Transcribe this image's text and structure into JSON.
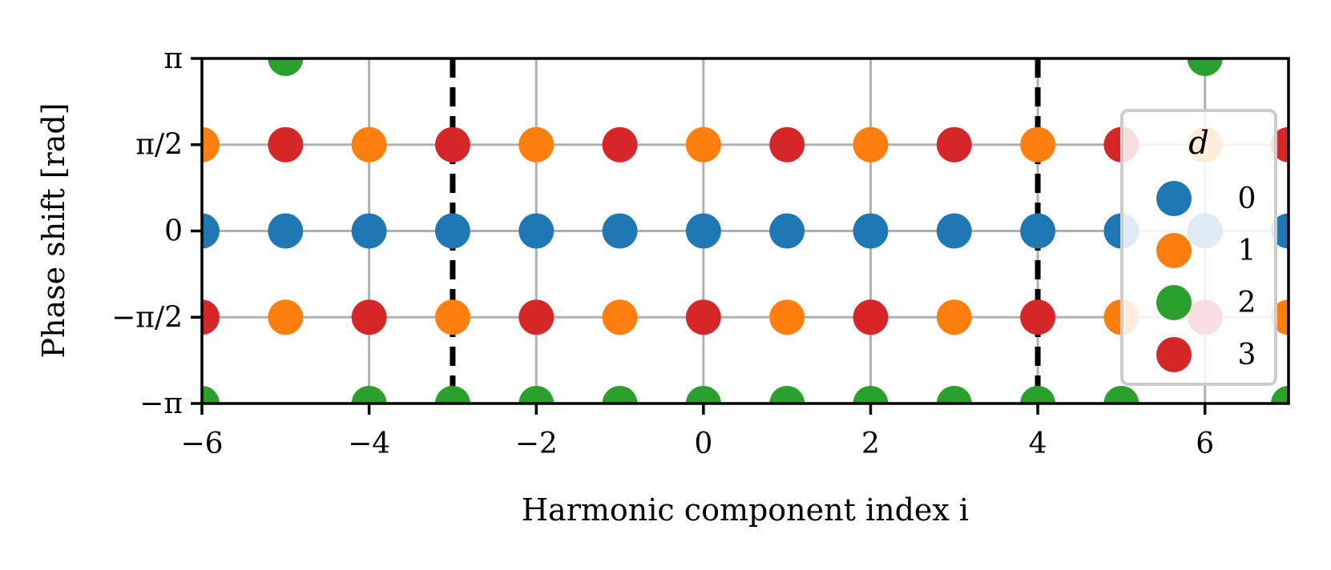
{
  "chart_data": {
    "type": "scatter",
    "title": "",
    "xlabel": "Harmonic component index i",
    "ylabel": "Phase shift [rad]",
    "xlim": [
      -6,
      7
    ],
    "ylim": [
      -3.14159,
      3.14159
    ],
    "x_ticks": [
      {
        "value": -6,
        "label": "−6"
      },
      {
        "value": -4,
        "label": "−4"
      },
      {
        "value": -2,
        "label": "−2"
      },
      {
        "value": 0,
        "label": "0"
      },
      {
        "value": 2,
        "label": "2"
      },
      {
        "value": 4,
        "label": "4"
      },
      {
        "value": 6,
        "label": "6"
      }
    ],
    "y_ticks": [
      {
        "value": -3.14159,
        "label": "−π"
      },
      {
        "value": -1.5708,
        "label": "−π/2"
      },
      {
        "value": 0,
        "label": "0"
      },
      {
        "value": 1.5708,
        "label": "π/2"
      },
      {
        "value": 3.14159,
        "label": "π"
      }
    ],
    "grid": true,
    "vlines": [
      {
        "x": -3,
        "style": "dashed",
        "color": "#000000"
      },
      {
        "x": 4,
        "style": "dashed",
        "color": "#000000"
      }
    ],
    "legend": {
      "title": "d",
      "placement": "right"
    },
    "series": [
      {
        "name": "0",
        "color": "#1f77b4",
        "points": [
          [
            -6,
            0
          ],
          [
            -5,
            0
          ],
          [
            -4,
            0
          ],
          [
            -3,
            0
          ],
          [
            -2,
            0
          ],
          [
            -1,
            0
          ],
          [
            0,
            0
          ],
          [
            1,
            0
          ],
          [
            2,
            0
          ],
          [
            3,
            0
          ],
          [
            4,
            0
          ],
          [
            5,
            0
          ],
          [
            6,
            0
          ],
          [
            7,
            0
          ]
        ]
      },
      {
        "name": "1",
        "color": "#ff7f0e",
        "points": [
          [
            -6,
            1.5708
          ],
          [
            -4,
            1.5708
          ],
          [
            -2,
            1.5708
          ],
          [
            0,
            1.5708
          ],
          [
            2,
            1.5708
          ],
          [
            4,
            1.5708
          ],
          [
            6,
            1.5708
          ],
          [
            -5,
            -1.5708
          ],
          [
            -3,
            -1.5708
          ],
          [
            -1,
            -1.5708
          ],
          [
            1,
            -1.5708
          ],
          [
            3,
            -1.5708
          ],
          [
            5,
            -1.5708
          ],
          [
            7,
            -1.5708
          ]
        ]
      },
      {
        "name": "2",
        "color": "#2ca02c",
        "points": [
          [
            -5,
            3.14159
          ],
          [
            6,
            3.14159
          ],
          [
            -6,
            -3.14159
          ],
          [
            -4,
            -3.14159
          ],
          [
            -3,
            -3.14159
          ],
          [
            -2,
            -3.14159
          ],
          [
            -1,
            -3.14159
          ],
          [
            0,
            -3.14159
          ],
          [
            1,
            -3.14159
          ],
          [
            2,
            -3.14159
          ],
          [
            3,
            -3.14159
          ],
          [
            4,
            -3.14159
          ],
          [
            5,
            -3.14159
          ],
          [
            7,
            -3.14159
          ]
        ]
      },
      {
        "name": "3",
        "color": "#d62728",
        "points": [
          [
            -5,
            1.5708
          ],
          [
            -3,
            1.5708
          ],
          [
            -1,
            1.5708
          ],
          [
            1,
            1.5708
          ],
          [
            3,
            1.5708
          ],
          [
            5,
            1.5708
          ],
          [
            7,
            1.5708
          ],
          [
            -6,
            -1.5708
          ],
          [
            -4,
            -1.5708
          ],
          [
            -2,
            -1.5708
          ],
          [
            0,
            -1.5708
          ],
          [
            2,
            -1.5708
          ],
          [
            4,
            -1.5708
          ],
          [
            6,
            -1.5708
          ]
        ]
      }
    ]
  }
}
